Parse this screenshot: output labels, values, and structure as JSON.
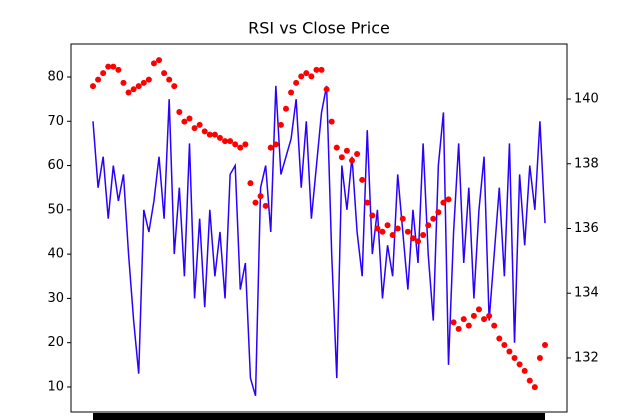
{
  "chart_data": {
    "type": "line",
    "title": "RSI vs Close Price",
    "ylim": [
      4.35,
      87.45
    ],
    "yticks": [
      10,
      20,
      30,
      40,
      50,
      60,
      70,
      80
    ],
    "y2lim": [
      130.33,
      141.7
    ],
    "y2ticks": [
      132,
      134,
      136,
      138,
      140
    ],
    "series": [
      {
        "type": "line",
        "color": "#2a00ff",
        "values": [
          70,
          55,
          62,
          48,
          60,
          52,
          58,
          40,
          25,
          13,
          50,
          45,
          52,
          62,
          48,
          75,
          40,
          55,
          35,
          65,
          30,
          48,
          28,
          50,
          35,
          45,
          30,
          58,
          60,
          32,
          38,
          12,
          8,
          55,
          60,
          45,
          78,
          58,
          62,
          66,
          75,
          55,
          70,
          48,
          60,
          72,
          78,
          40,
          12,
          60,
          50,
          62,
          45,
          35,
          68,
          40,
          50,
          30,
          42,
          35,
          58,
          45,
          32,
          50,
          38,
          65,
          40,
          25,
          60,
          72,
          15,
          45,
          65,
          38,
          55,
          30,
          50,
          62,
          25,
          40,
          55,
          35,
          65,
          20,
          58,
          42,
          60,
          50,
          70,
          47
        ]
      },
      {
        "type": "scatter",
        "axis": "y2",
        "color": "#ff0000",
        "values": [
          140.4,
          140.6,
          140.8,
          141,
          141,
          140.9,
          140.5,
          140.2,
          140.3,
          140.4,
          140.5,
          140.6,
          141.1,
          141.2,
          140.8,
          140.6,
          140.4,
          139.6,
          139.3,
          139.4,
          139.1,
          139.2,
          139,
          138.9,
          138.9,
          138.8,
          138.7,
          138.7,
          138.6,
          138.5,
          138.6,
          137.4,
          136.8,
          137,
          136.7,
          138.5,
          138.6,
          139.2,
          139.7,
          140.2,
          140.5,
          140.7,
          140.8,
          140.7,
          140.9,
          140.9,
          140.3,
          139.3,
          138.5,
          138.2,
          138.4,
          138.1,
          138.3,
          137.5,
          136.8,
          136.4,
          136,
          135.9,
          136.1,
          135.8,
          136,
          136.3,
          135.9,
          135.7,
          135.6,
          135.8,
          136.1,
          136.3,
          136.5,
          136.8,
          136.9,
          133.1,
          132.9,
          133.2,
          133,
          133.3,
          133.5,
          133.2,
          133.3,
          133,
          132.6,
          132.4,
          132.2,
          132,
          131.8,
          131.6,
          131.3,
          131.1,
          132,
          132.4
        ]
      }
    ]
  }
}
